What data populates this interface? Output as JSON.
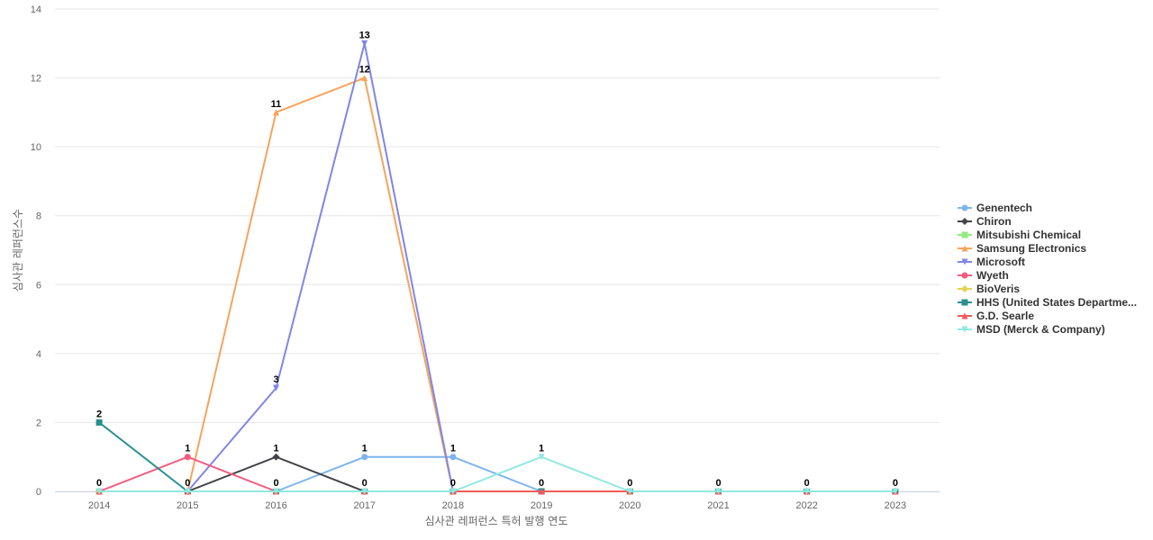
{
  "chart_data": {
    "type": "line",
    "title": "",
    "xlabel": "심사관 레퍼런스 특허 발행 연도",
    "ylabel": "심사관 레퍼런스수",
    "ylim": [
      0,
      14
    ],
    "yticks": [
      "0",
      "2",
      "4",
      "6",
      "8",
      "10",
      "12",
      "14"
    ],
    "categories": [
      "2014",
      "2015",
      "2016",
      "2017",
      "2018",
      "2019",
      "2020",
      "2021",
      "2022",
      "2023"
    ],
    "grid": "horizontal",
    "legend_position": "right",
    "series": [
      {
        "name": "Genentech",
        "color": "#7cb5ec",
        "marker": "circle",
        "values": [
          0,
          0,
          0,
          1,
          1,
          0,
          0,
          0,
          0,
          0
        ]
      },
      {
        "name": "Chiron",
        "color": "#434348",
        "marker": "diamond",
        "values": [
          0,
          0,
          1,
          0,
          0,
          0,
          0,
          0,
          0,
          0
        ]
      },
      {
        "name": "Mitsubishi Chemical",
        "color": "#90ed7d",
        "marker": "square",
        "values": [
          0,
          0,
          0,
          0,
          0,
          0,
          0,
          0,
          0,
          0
        ]
      },
      {
        "name": "Samsung Electronics",
        "color": "#f7a35c",
        "marker": "triangle",
        "values": [
          0,
          0,
          11,
          12,
          0,
          0,
          0,
          0,
          0,
          0
        ]
      },
      {
        "name": "Microsoft",
        "color": "#8085e9",
        "marker": "triangle-down",
        "values": [
          0,
          0,
          3,
          13,
          0,
          0,
          0,
          0,
          0,
          0
        ]
      },
      {
        "name": "Wyeth",
        "color": "#f15c80",
        "marker": "circle",
        "values": [
          0,
          1,
          0,
          0,
          0,
          0,
          0,
          0,
          0,
          0
        ]
      },
      {
        "name": "BioVeris",
        "color": "#e4d354",
        "marker": "diamond",
        "values": [
          0,
          0,
          0,
          0,
          0,
          0,
          0,
          0,
          0,
          0
        ]
      },
      {
        "name": "HHS (United States Departme...",
        "color": "#2b908f",
        "marker": "square",
        "values": [
          2,
          0,
          0,
          0,
          0,
          0,
          0,
          0,
          0,
          0
        ]
      },
      {
        "name": "G.D. Searle",
        "color": "#f45b5b",
        "marker": "triangle",
        "values": [
          0,
          0,
          0,
          0,
          0,
          0,
          0,
          0,
          0,
          0
        ]
      },
      {
        "name": "MSD (Merck & Company)",
        "color": "#91e8e1",
        "marker": "triangle-down",
        "values": [
          0,
          0,
          0,
          0,
          0,
          1,
          0,
          0,
          0,
          0
        ]
      }
    ],
    "data_labels": [
      {
        "category": "2014",
        "value": 2,
        "text": "2"
      },
      {
        "category": "2014",
        "value": 0,
        "text": "0"
      },
      {
        "category": "2015",
        "value": 1,
        "text": "1"
      },
      {
        "category": "2015",
        "value": 0,
        "text": "0"
      },
      {
        "category": "2016",
        "value": 11,
        "text": "11"
      },
      {
        "category": "2016",
        "value": 3,
        "text": "3"
      },
      {
        "category": "2016",
        "value": 1,
        "text": "1"
      },
      {
        "category": "2016",
        "value": 0,
        "text": "0"
      },
      {
        "category": "2017",
        "value": 13,
        "text": "13"
      },
      {
        "category": "2017",
        "value": 12,
        "text": "12"
      },
      {
        "category": "2017",
        "value": 1,
        "text": "1"
      },
      {
        "category": "2017",
        "value": 0,
        "text": "0"
      },
      {
        "category": "2018",
        "value": 1,
        "text": "1"
      },
      {
        "category": "2018",
        "value": 0,
        "text": "0"
      },
      {
        "category": "2019",
        "value": 1,
        "text": "1"
      },
      {
        "category": "2019",
        "value": 0,
        "text": "0"
      },
      {
        "category": "2020",
        "value": 0,
        "text": "0"
      },
      {
        "category": "2021",
        "value": 0,
        "text": "0"
      },
      {
        "category": "2022",
        "value": 0,
        "text": "0"
      },
      {
        "category": "2023",
        "value": 0,
        "text": "0"
      }
    ]
  }
}
